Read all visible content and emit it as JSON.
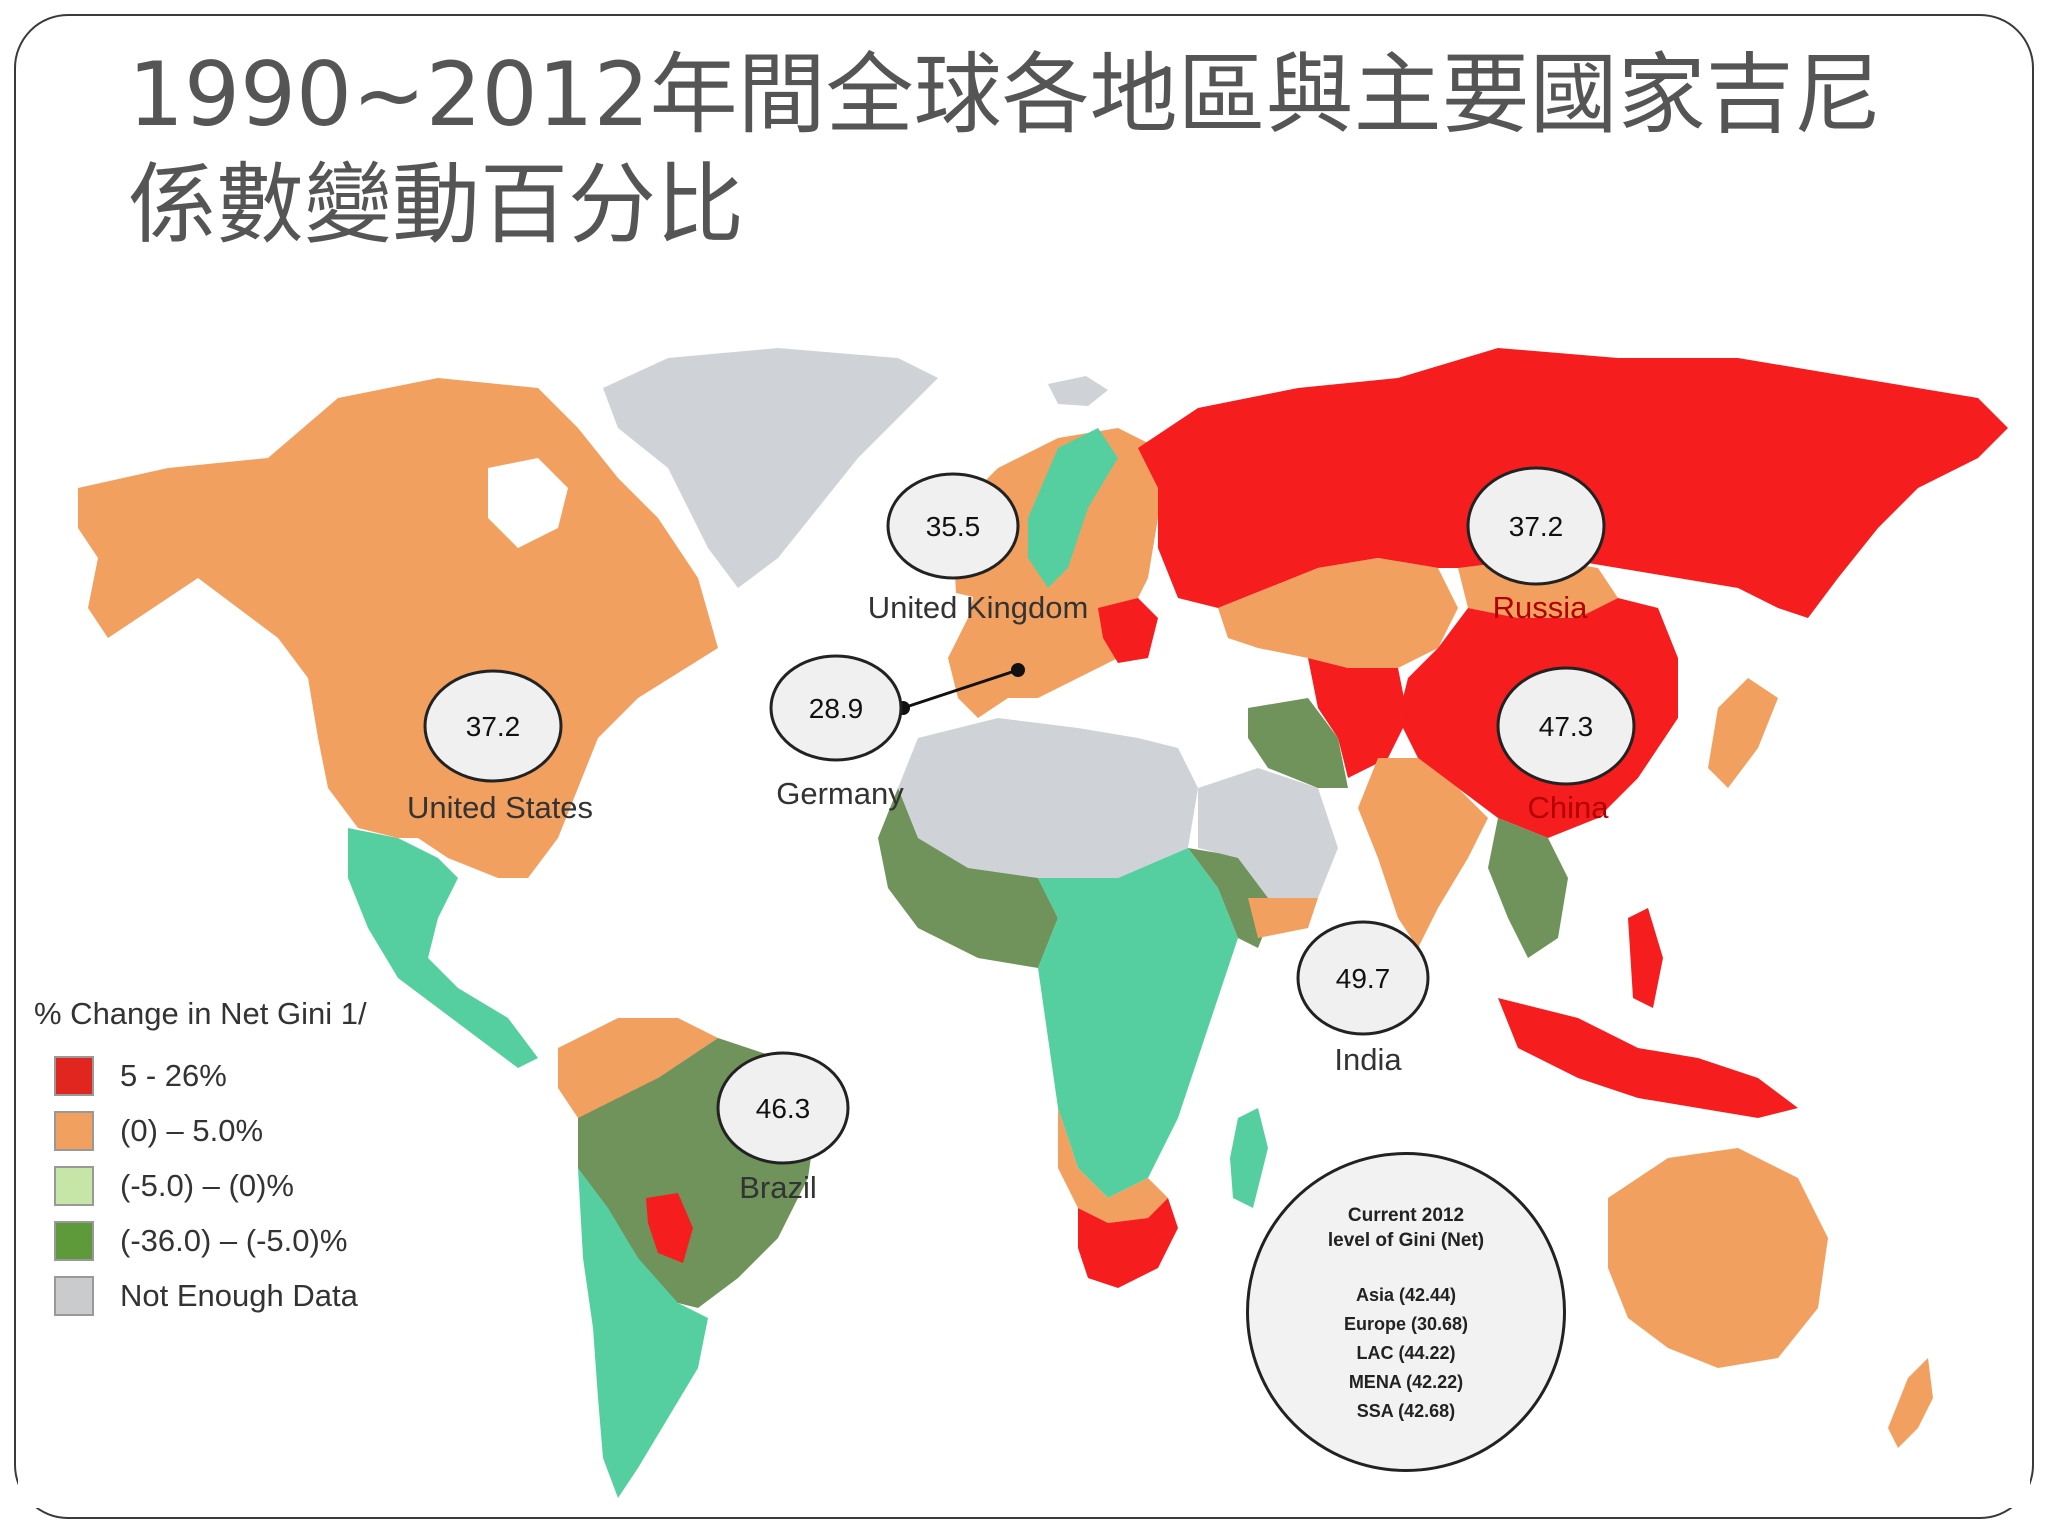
{
  "title": {
    "line1": "1990~2012年間全球各地區與主要國家吉尼",
    "line2": "係數變動百分比"
  },
  "colors": {
    "red": "#f51d1d",
    "orange": "#f2a05f",
    "light_green": "#56cfa0",
    "dark_green": "#6f935a",
    "gray": "#cfd3d7",
    "bubble_fill": "#f0f0f0"
  },
  "bubbles": [
    {
      "id": "uk",
      "value": "35.5",
      "country": "United Kingdom"
    },
    {
      "id": "germany",
      "value": "28.9",
      "country": "Germany"
    },
    {
      "id": "us",
      "value": "37.2",
      "country": "United States"
    },
    {
      "id": "russia",
      "value": "37.2",
      "country": "Russia"
    },
    {
      "id": "china",
      "value": "47.3",
      "country": "China"
    },
    {
      "id": "india",
      "value": "49.7",
      "country": "India"
    },
    {
      "id": "brazil",
      "value": "46.3",
      "country": "Brazil"
    }
  ],
  "legend": {
    "title": "% Change in Net Gini 1/",
    "items": [
      {
        "label": "5 - 26%",
        "color": "#e0261f"
      },
      {
        "label": "(0) – 5.0%",
        "color": "#f2a05f"
      },
      {
        "label": "(-5.0) – (0)%",
        "color": "#c5e6a6"
      },
      {
        "label": "(-36.0) – (-5.0)%",
        "color": "#5f9a3a"
      },
      {
        "label": "Not Enough Data",
        "color": "#c9cbcd"
      }
    ]
  },
  "summary": {
    "title_line1": "Current 2012",
    "title_line2": "level of Gini (Net)",
    "items": [
      "Asia (42.44)",
      "Europe (30.68)",
      "LAC (44.22)",
      "MENA (42.22)",
      "SSA (42.68)"
    ]
  }
}
